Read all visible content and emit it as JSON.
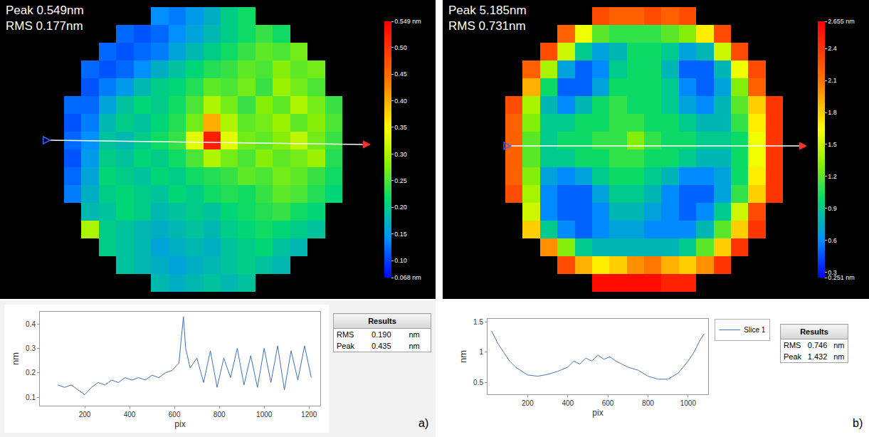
{
  "chart_data": [
    {
      "type": "heatmap",
      "annotations": [
        "Peak 0.549nm",
        "RMS 0.177nm"
      ],
      "tick_labels": false,
      "color_range": [
        0.068,
        0.549
      ],
      "color_ticks": [
        {
          "value": 0.068,
          "label": "0.068 nm"
        },
        {
          "value": 0.1,
          "label": "0.10"
        },
        {
          "value": 0.15,
          "label": "0.15"
        },
        {
          "value": 0.2,
          "label": "0.20"
        },
        {
          "value": 0.25,
          "label": "0.25"
        },
        {
          "value": 0.3,
          "label": "0.30"
        },
        {
          "value": 0.35,
          "label": "0.35"
        },
        {
          "value": 0.4,
          "label": "0.40"
        },
        {
          "value": 0.45,
          "label": "0.45"
        },
        {
          "value": 0.5,
          "label": "0.50"
        },
        {
          "value": 0.549,
          "label": "0.549 nm"
        }
      ],
      "cells": [
        [
          null,
          null,
          null,
          null,
          null,
          0.14,
          0.13,
          0.15,
          0.17,
          0.2,
          0.22,
          null,
          null,
          null,
          null,
          null
        ],
        [
          null,
          null,
          null,
          0.12,
          0.11,
          0.12,
          0.14,
          0.16,
          0.18,
          0.2,
          0.22,
          0.24,
          0.22,
          null,
          null,
          null
        ],
        [
          null,
          null,
          0.12,
          0.11,
          0.12,
          0.13,
          0.16,
          0.18,
          0.2,
          0.22,
          0.24,
          0.26,
          0.25,
          0.27,
          null,
          null
        ],
        [
          null,
          0.12,
          0.11,
          0.12,
          0.14,
          0.17,
          0.19,
          0.21,
          0.23,
          0.24,
          0.26,
          0.25,
          0.28,
          0.26,
          0.27,
          null
        ],
        [
          null,
          0.11,
          0.13,
          0.15,
          0.18,
          0.2,
          0.21,
          0.23,
          0.26,
          0.25,
          0.27,
          0.24,
          0.29,
          0.27,
          0.25,
          null
        ],
        [
          0.12,
          0.12,
          0.16,
          0.19,
          0.21,
          0.2,
          0.22,
          0.25,
          0.3,
          0.27,
          0.24,
          0.28,
          0.26,
          0.3,
          0.27,
          0.24
        ],
        [
          0.11,
          0.13,
          0.18,
          0.2,
          0.19,
          0.21,
          0.23,
          0.27,
          0.4,
          0.3,
          0.26,
          0.27,
          0.29,
          0.26,
          0.28,
          0.25
        ],
        [
          0.12,
          0.14,
          0.19,
          0.18,
          0.2,
          0.22,
          0.24,
          0.33,
          0.52,
          0.33,
          0.27,
          0.26,
          0.28,
          0.31,
          0.27,
          0.24
        ],
        [
          0.11,
          0.15,
          0.2,
          0.19,
          0.21,
          0.2,
          0.22,
          0.25,
          0.3,
          0.27,
          0.25,
          0.28,
          0.26,
          0.27,
          0.29,
          0.23
        ],
        [
          0.12,
          0.16,
          0.21,
          0.2,
          0.19,
          0.21,
          0.2,
          0.22,
          0.23,
          0.24,
          0.26,
          0.25,
          0.27,
          0.26,
          0.24,
          0.22
        ],
        [
          0.13,
          0.17,
          0.2,
          0.21,
          0.2,
          0.19,
          0.21,
          0.2,
          0.22,
          0.23,
          0.22,
          0.24,
          0.26,
          0.25,
          0.23,
          0.21
        ],
        [
          null,
          0.18,
          0.19,
          0.21,
          0.2,
          0.18,
          0.19,
          0.2,
          0.19,
          0.21,
          0.22,
          0.23,
          0.24,
          0.22,
          0.21,
          null
        ],
        [
          null,
          0.3,
          0.2,
          0.19,
          0.18,
          0.17,
          0.18,
          0.19,
          0.18,
          0.2,
          0.21,
          0.22,
          0.21,
          0.2,
          0.19,
          null
        ],
        [
          null,
          null,
          0.2,
          0.19,
          0.18,
          0.16,
          0.17,
          0.18,
          0.17,
          0.19,
          0.2,
          0.21,
          0.19,
          0.18,
          null,
          null
        ],
        [
          null,
          null,
          null,
          0.19,
          0.18,
          0.17,
          0.16,
          0.17,
          0.18,
          0.19,
          0.2,
          0.19,
          0.18,
          null,
          null,
          null
        ],
        [
          null,
          null,
          null,
          null,
          null,
          0.18,
          0.17,
          0.18,
          0.19,
          0.18,
          0.19,
          null,
          null,
          null,
          null,
          null
        ]
      ]
    },
    {
      "type": "line",
      "xlabel": "pix",
      "ylabel": "nm",
      "xlim": [
        0,
        1250
      ],
      "ylim": [
        0.065,
        0.45
      ],
      "xticks": [
        200,
        400,
        600,
        800,
        1000,
        1200
      ],
      "yticks": [
        0.1,
        0.2,
        0.3,
        0.4
      ],
      "grid": false,
      "color": "#3d6fb0",
      "x": [
        80,
        110,
        140,
        170,
        200,
        230,
        260,
        290,
        320,
        350,
        380,
        410,
        440,
        470,
        500,
        530,
        560,
        590,
        620,
        640,
        650,
        670,
        700,
        730,
        760,
        790,
        820,
        850,
        880,
        910,
        940,
        970,
        1000,
        1030,
        1060,
        1090,
        1120,
        1150,
        1180,
        1210
      ],
      "values": [
        0.15,
        0.14,
        0.15,
        0.13,
        0.11,
        0.14,
        0.16,
        0.15,
        0.17,
        0.16,
        0.18,
        0.17,
        0.18,
        0.17,
        0.19,
        0.18,
        0.2,
        0.21,
        0.24,
        0.43,
        0.3,
        0.22,
        0.26,
        0.16,
        0.29,
        0.14,
        0.26,
        0.18,
        0.3,
        0.15,
        0.27,
        0.14,
        0.3,
        0.16,
        0.31,
        0.13,
        0.29,
        0.17,
        0.31,
        0.18
      ],
      "results": {
        "title": "Results",
        "rows": [
          [
            "RMS",
            "0.190",
            "nm"
          ],
          [
            "Peak",
            "0.435",
            "nm"
          ]
        ]
      },
      "panel": "a)"
    },
    {
      "type": "heatmap",
      "annotations": [
        "Peak 5.185nm",
        "RMS 0.731nm"
      ],
      "tick_labels": false,
      "color_range": [
        0.251,
        2.655
      ],
      "color_ticks": [
        {
          "value": 0.251,
          "label": "0.251 nm"
        },
        0.3,
        0.6,
        0.9,
        1.2,
        1.5,
        1.8,
        2.1,
        2.4,
        {
          "value": 2.655,
          "label": "2.655 nm"
        }
      ],
      "cells": [
        [
          null,
          null,
          null,
          null,
          null,
          2.3,
          2.2,
          2.2,
          2.3,
          2.2,
          2.3,
          null,
          null,
          null,
          null,
          null
        ],
        [
          null,
          null,
          null,
          2.2,
          1.6,
          1.2,
          1.1,
          1.1,
          1.1,
          1.2,
          1.3,
          1.7,
          2.3,
          null,
          null,
          null
        ],
        [
          null,
          null,
          2.3,
          1.5,
          0.9,
          0.7,
          0.8,
          1.0,
          1.0,
          0.9,
          0.7,
          0.8,
          1.5,
          2.3,
          null,
          null
        ],
        [
          null,
          2.2,
          1.4,
          0.7,
          0.5,
          0.6,
          0.9,
          1.0,
          1.0,
          0.8,
          0.5,
          0.5,
          0.8,
          1.6,
          2.3,
          null
        ],
        [
          null,
          1.9,
          1.0,
          0.5,
          0.5,
          0.7,
          1.0,
          1.0,
          1.0,
          0.9,
          0.6,
          0.5,
          0.7,
          1.3,
          2.2,
          null
        ],
        [
          2.3,
          1.4,
          0.8,
          0.6,
          0.8,
          1.0,
          1.1,
          1.0,
          1.0,
          0.9,
          0.7,
          0.6,
          0.8,
          1.2,
          1.8,
          2.4
        ],
        [
          2.2,
          1.3,
          0.9,
          0.9,
          1.0,
          1.0,
          1.1,
          1.1,
          1.0,
          1.0,
          0.9,
          0.8,
          0.8,
          1.1,
          1.7,
          2.4
        ],
        [
          2.2,
          1.2,
          0.9,
          1.0,
          1.0,
          1.1,
          1.1,
          1.3,
          1.1,
          1.0,
          1.0,
          0.9,
          0.9,
          1.0,
          1.6,
          2.4
        ],
        [
          2.2,
          1.2,
          0.9,
          0.9,
          1.0,
          1.0,
          1.1,
          1.1,
          1.0,
          1.0,
          0.9,
          0.8,
          0.8,
          1.0,
          1.6,
          2.4
        ],
        [
          2.2,
          1.3,
          0.7,
          0.6,
          0.7,
          0.9,
          1.0,
          1.0,
          0.9,
          0.8,
          0.6,
          0.6,
          0.7,
          1.0,
          1.7,
          2.4
        ],
        [
          2.3,
          1.4,
          0.6,
          0.5,
          0.5,
          0.7,
          0.9,
          0.9,
          0.8,
          0.6,
          0.5,
          0.5,
          0.7,
          1.1,
          1.8,
          2.4
        ],
        [
          null,
          1.5,
          0.6,
          0.5,
          0.5,
          0.6,
          0.8,
          0.8,
          0.7,
          0.6,
          0.5,
          0.6,
          0.9,
          1.5,
          2.3,
          null
        ],
        [
          null,
          1.8,
          0.9,
          0.6,
          0.5,
          0.6,
          0.7,
          0.7,
          0.6,
          0.6,
          0.6,
          0.8,
          1.2,
          1.8,
          2.4,
          null
        ],
        [
          null,
          null,
          2.0,
          1.3,
          0.9,
          0.8,
          0.8,
          0.8,
          0.8,
          0.8,
          0.9,
          1.2,
          1.8,
          2.4,
          null,
          null
        ],
        [
          null,
          null,
          null,
          2.3,
          1.9,
          1.7,
          1.8,
          2.0,
          2.1,
          1.9,
          1.8,
          2.0,
          2.4,
          null,
          null,
          null
        ],
        [
          null,
          null,
          null,
          null,
          null,
          2.6,
          2.6,
          2.6,
          2.6,
          2.5,
          2.5,
          null,
          null,
          null,
          null,
          null
        ]
      ]
    },
    {
      "type": "line",
      "xlabel": "pix",
      "ylabel": "nm",
      "xlim": [
        0,
        1100
      ],
      "ylim": [
        0.3,
        1.55
      ],
      "xticks": [
        200,
        400,
        600,
        800,
        1000
      ],
      "yticks": [
        0.5,
        1,
        1.5
      ],
      "grid": false,
      "legend": "right",
      "x": [
        20,
        50,
        80,
        110,
        140,
        170,
        200,
        250,
        300,
        350,
        400,
        430,
        460,
        490,
        520,
        550,
        580,
        610,
        640,
        670,
        700,
        750,
        800,
        850,
        900,
        950,
        1000,
        1030,
        1060,
        1080
      ],
      "series": [
        {
          "name": "Slice 1",
          "color": "#4a72b8",
          "values": [
            1.35,
            1.15,
            1.0,
            0.85,
            0.75,
            0.68,
            0.62,
            0.6,
            0.63,
            0.68,
            0.75,
            0.85,
            0.8,
            0.9,
            0.85,
            0.95,
            0.88,
            0.92,
            0.85,
            0.8,
            0.75,
            0.7,
            0.6,
            0.55,
            0.55,
            0.65,
            0.85,
            1.0,
            1.2,
            1.3
          ]
        }
      ],
      "results": {
        "title": "Results",
        "rows": [
          [
            "RMS",
            "0.746",
            "nm"
          ],
          [
            "Peak",
            "1.432",
            "nm"
          ]
        ]
      },
      "panel": "b)"
    }
  ]
}
